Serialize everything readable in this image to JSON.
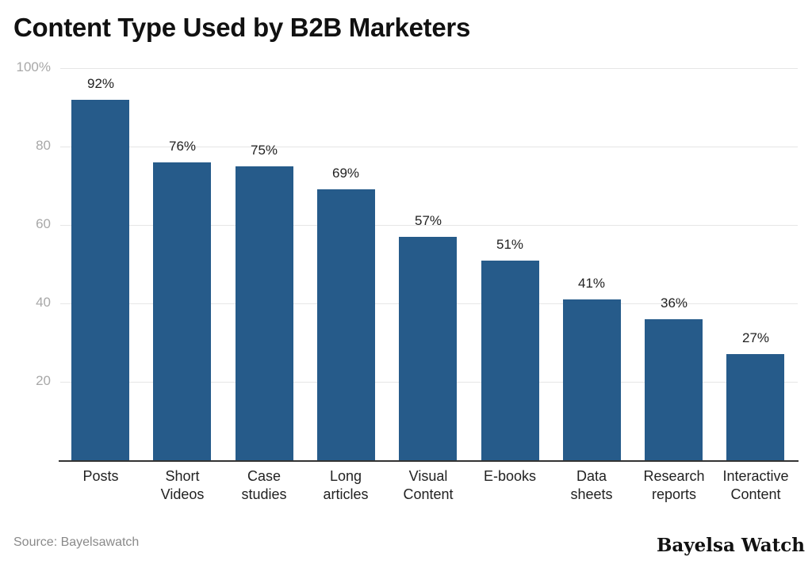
{
  "chart_data": {
    "type": "bar",
    "title": "Content Type Used by B2B Marketers",
    "xlabel": "",
    "ylabel": "",
    "ylim": [
      0,
      100
    ],
    "yticks": [
      "20",
      "40",
      "60",
      "80",
      "100%"
    ],
    "grid": true,
    "legend": null,
    "categories": [
      "Posts",
      "Short Videos",
      "Case studies",
      "Long articles",
      "Visual Content",
      "E-books",
      "Data sheets",
      "Research reports",
      "Interactive Content"
    ],
    "category_labels": [
      "Posts",
      "Short\nVideos",
      "Case\nstudies",
      "Long\narticles",
      "Visual\nContent",
      "E-books",
      "Data\nsheets",
      "Research\nreports",
      "Interactive\nContent"
    ],
    "values": [
      92,
      76,
      75,
      69,
      57,
      51,
      41,
      36,
      27
    ],
    "value_labels": [
      "92%",
      "76%",
      "75%",
      "69%",
      "57%",
      "51%",
      "41%",
      "36%",
      "27%"
    ],
    "bar_color": "#265b8a"
  },
  "footer": {
    "source": "Source: Bayelsawatch",
    "brand": "Bayelsa Watch"
  }
}
